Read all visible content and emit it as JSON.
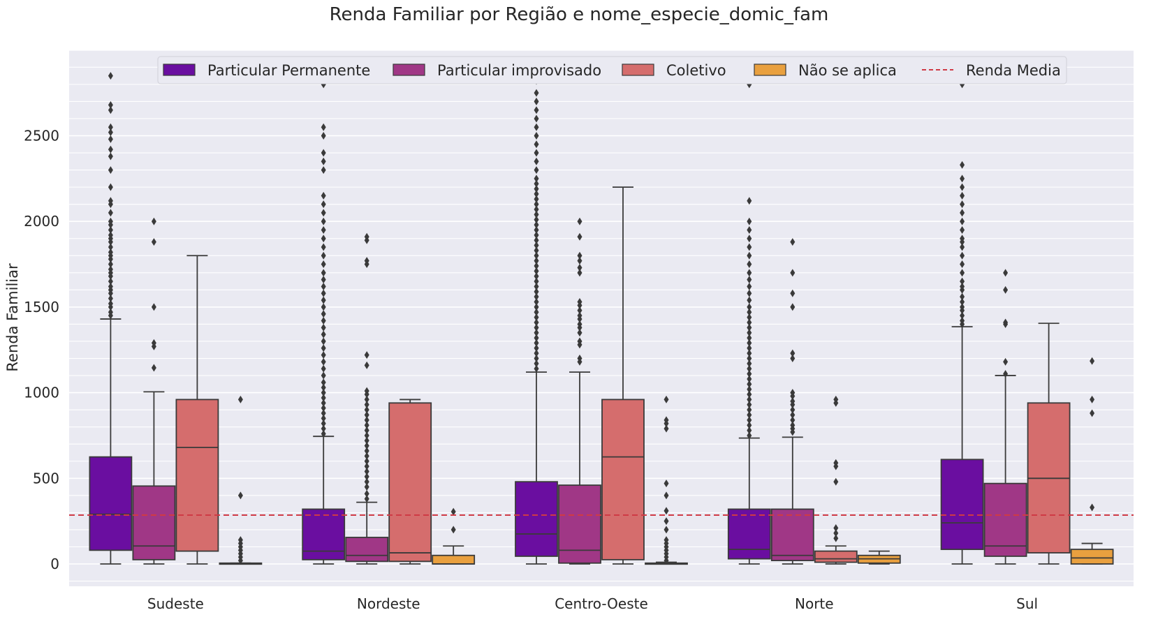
{
  "chart_data": {
    "type": "box",
    "title": "Renda Familiar por Região e nome_especie_domic_fam",
    "xlabel": "",
    "ylabel": "Renda Familiar",
    "ylim": [
      -140,
      3030
    ],
    "yticks": [
      0,
      500,
      1000,
      1500,
      2000,
      2500
    ],
    "grid": true,
    "legend_position": "top",
    "categories": [
      "Sudeste",
      "Nordeste",
      "Centro-Oeste",
      "Norte",
      "Sul"
    ],
    "series": [
      {
        "name": "Particular Permanente",
        "color": "#6a0ea0",
        "boxes": [
          {
            "q1": 80,
            "median": 290,
            "q3": 625,
            "whislo": 0,
            "whishi": 1430,
            "fliers": [
              1450,
              1470,
              1500,
              1520,
              1550,
              1580,
              1600,
              1620,
              1650,
              1680,
              1700,
              1720,
              1750,
              1780,
              1800,
              1820,
              1850,
              1880,
              1900,
              1920,
              1950,
              1980,
              2000,
              2050,
              2100,
              2120,
              2200,
              2300,
              2380,
              2420,
              2480,
              2520,
              2550,
              2650,
              2680,
              2850
            ]
          },
          {
            "q1": 25,
            "median": 75,
            "q3": 320,
            "whislo": 0,
            "whishi": 745,
            "fliers": [
              760,
              790,
              820,
              850,
              880,
              910,
              940,
              970,
              1000,
              1030,
              1060,
              1100,
              1140,
              1180,
              1220,
              1260,
              1300,
              1340,
              1380,
              1420,
              1460,
              1500,
              1540,
              1580,
              1620,
              1660,
              1700,
              1750,
              1800,
              1850,
              1900,
              1950,
              2000,
              2050,
              2100,
              2150,
              2300,
              2350,
              2400,
              2500,
              2550,
              2800
            ]
          },
          {
            "q1": 45,
            "median": 175,
            "q3": 480,
            "whislo": 0,
            "whishi": 1120,
            "fliers": [
              1140,
              1170,
              1200,
              1230,
              1260,
              1290,
              1320,
              1350,
              1380,
              1410,
              1440,
              1470,
              1500,
              1530,
              1560,
              1590,
              1620,
              1650,
              1680,
              1710,
              1740,
              1770,
              1800,
              1830,
              1860,
              1890,
              1920,
              1950,
              1980,
              2010,
              2040,
              2070,
              2100,
              2130,
              2160,
              2190,
              2220,
              2250,
              2300,
              2350,
              2400,
              2450,
              2500,
              2550,
              2600,
              2650,
              2700,
              2750,
              2820
            ]
          },
          {
            "q1": 30,
            "median": 85,
            "q3": 320,
            "whislo": 0,
            "whishi": 735,
            "fliers": [
              750,
              780,
              810,
              840,
              870,
              900,
              930,
              960,
              990,
              1020,
              1050,
              1080,
              1110,
              1140,
              1170,
              1200,
              1230,
              1260,
              1290,
              1320,
              1350,
              1380,
              1410,
              1440,
              1470,
              1500,
              1540,
              1580,
              1620,
              1660,
              1700,
              1750,
              1800,
              1850,
              1900,
              1950,
              2000,
              2120,
              2800,
              2850
            ]
          },
          {
            "q1": 85,
            "median": 240,
            "q3": 610,
            "whislo": 0,
            "whishi": 1385,
            "fliers": [
              1400,
              1420,
              1450,
              1480,
              1500,
              1530,
              1560,
              1600,
              1620,
              1650,
              1700,
              1750,
              1800,
              1850,
              1880,
              1900,
              1950,
              2000,
              2050,
              2100,
              2150,
              2200,
              2250,
              2330,
              2800
            ]
          }
        ]
      },
      {
        "name": "Particular improvisado",
        "color": "#a03786",
        "boxes": [
          {
            "q1": 25,
            "median": 105,
            "q3": 455,
            "whislo": 0,
            "whishi": 1005,
            "fliers": [
              1145,
              1270,
              1290,
              1500,
              1880,
              2000
            ]
          },
          {
            "q1": 15,
            "median": 50,
            "q3": 155,
            "whislo": 0,
            "whishi": 360,
            "fliers": [
              380,
              410,
              450,
              480,
              510,
              540,
              570,
              600,
              630,
              660,
              690,
              720,
              750,
              780,
              810,
              840,
              870,
              900,
              930,
              960,
              990,
              1010,
              1160,
              1220,
              1750,
              1770,
              1890,
              1910
            ]
          },
          {
            "q1": 5,
            "median": 80,
            "q3": 460,
            "whislo": 0,
            "whishi": 1120,
            "fliers": [
              1180,
              1200,
              1280,
              1300,
              1350,
              1380,
              1400,
              1430,
              1450,
              1480,
              1510,
              1530,
              1700,
              1730,
              1770,
              1800,
              1910,
              2000,
              2840
            ]
          },
          {
            "q1": 20,
            "median": 50,
            "q3": 320,
            "whislo": 0,
            "whishi": 740,
            "fliers": [
              770,
              790,
              810,
              840,
              870,
              900,
              930,
              950,
              980,
              1000,
              1200,
              1230,
              1500,
              1580,
              1700,
              1880
            ]
          },
          {
            "q1": 45,
            "median": 105,
            "q3": 470,
            "whislo": 0,
            "whishi": 1100,
            "fliers": [
              1110,
              1180,
              1400,
              1410,
              1600,
              1700
            ]
          }
        ]
      },
      {
        "name": "Coletivo",
        "color": "#d56d6d",
        "boxes": [
          {
            "q1": 75,
            "median": 680,
            "q3": 960,
            "whislo": 0,
            "whishi": 1800,
            "fliers": []
          },
          {
            "q1": 15,
            "median": 65,
            "q3": 940,
            "whislo": 0,
            "whishi": 960,
            "fliers": []
          },
          {
            "q1": 25,
            "median": 625,
            "q3": 960,
            "whislo": 0,
            "whishi": 2200,
            "fliers": []
          },
          {
            "q1": 10,
            "median": 30,
            "q3": 75,
            "whislo": 0,
            "whishi": 105,
            "fliers": [
              150,
              180,
              210,
              480,
              570,
              590,
              940,
              960
            ]
          },
          {
            "q1": 65,
            "median": 500,
            "q3": 940,
            "whislo": 0,
            "whishi": 1405,
            "fliers": []
          }
        ]
      },
      {
        "name": "Não se aplica",
        "color": "#e9a03f",
        "boxes": [
          {
            "q1": 0,
            "median": 0,
            "q3": 5,
            "whislo": 0,
            "whishi": 5,
            "fliers": [
              20,
              40,
              60,
              80,
              100,
              120,
              140,
              400,
              960
            ]
          },
          {
            "q1": 0,
            "median": 0,
            "q3": 50,
            "whislo": 0,
            "whishi": 105,
            "fliers": [
              200,
              305
            ]
          },
          {
            "q1": 0,
            "median": 0,
            "q3": 5,
            "whislo": 0,
            "whishi": 10,
            "fliers": [
              20,
              40,
              60,
              80,
              100,
              120,
              140,
              200,
              250,
              310,
              400,
              470,
              790,
              820,
              840,
              960
            ]
          },
          {
            "q1": 5,
            "median": 30,
            "q3": 50,
            "whislo": 0,
            "whishi": 75,
            "fliers": []
          },
          {
            "q1": 0,
            "median": 35,
            "q3": 85,
            "whislo": 0,
            "whishi": 120,
            "fliers": [
              330,
              880,
              960,
              1185
            ]
          }
        ]
      }
    ],
    "reference_line": {
      "name": "Renda Media",
      "value": 285,
      "color": "#cf3a45",
      "style": "dashed"
    }
  }
}
